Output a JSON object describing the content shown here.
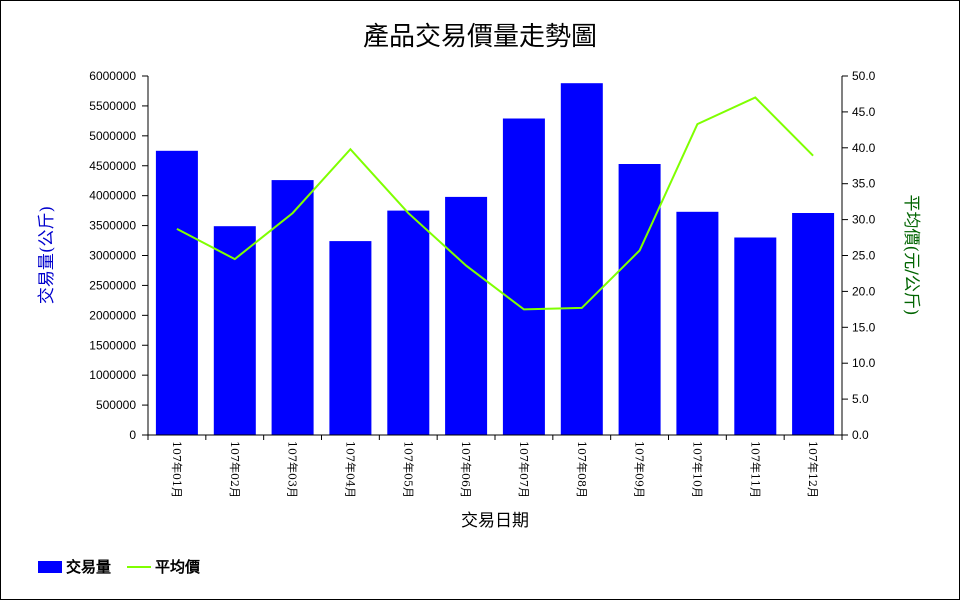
{
  "chart_data": {
    "type": "bar",
    "title": "產品交易價量走勢圖",
    "xlabel": "交易日期",
    "ylabel_left": "交易量(公斤)",
    "ylabel_right": "平均價(元/公斤)",
    "categories": [
      "107年01月",
      "107年02月",
      "107年03月",
      "107年04月",
      "107年05月",
      "107年06月",
      "107年07月",
      "107年08月",
      "107年09月",
      "107年10月",
      "107年11月",
      "107年12月"
    ],
    "series": [
      {
        "name": "交易量",
        "kind": "bar",
        "axis": "left",
        "color": "#0000ff",
        "values": [
          4750000,
          3490000,
          4260000,
          3240000,
          3750000,
          3980000,
          5290000,
          5880000,
          4530000,
          3730000,
          3300000,
          3710000
        ]
      },
      {
        "name": "平均價",
        "kind": "line",
        "axis": "right",
        "color": "#7fff00",
        "values": [
          28.7,
          24.5,
          30.9,
          39.8,
          30.9,
          23.6,
          17.5,
          17.7,
          25.7,
          43.3,
          47.0,
          38.9
        ]
      }
    ],
    "ylim_left": [
      0,
      6000000
    ],
    "yticks_left": [
      "0",
      "500000",
      "1000000",
      "1500000",
      "2000000",
      "2500000",
      "3000000",
      "3500000",
      "4000000",
      "4500000",
      "5000000",
      "5500000",
      "6000000"
    ],
    "ylim_right": [
      0,
      50
    ],
    "yticks_right": [
      "0.0",
      "5.0",
      "10.0",
      "15.0",
      "20.0",
      "25.0",
      "30.0",
      "35.0",
      "40.0",
      "45.0",
      "50.0"
    ],
    "legend_position": "bottom-left",
    "grid": false,
    "colors": {
      "left_axis_title": "#0000cd",
      "right_axis_title": "#006400"
    }
  }
}
